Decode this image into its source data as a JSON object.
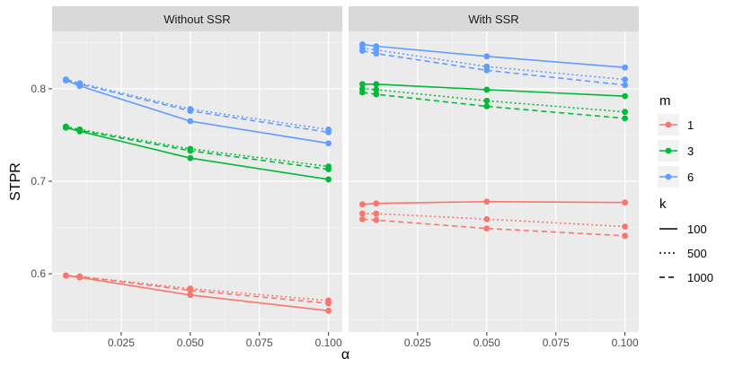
{
  "chart_data": {
    "type": "line",
    "facet_variable": "SSR",
    "panels": [
      {
        "title": "Without SSR",
        "series": [
          {
            "m": "1",
            "k": "100",
            "x": [
              0.005,
              0.01,
              0.05,
              0.1
            ],
            "y": [
              0.598,
              0.596,
              0.577,
              0.56
            ]
          },
          {
            "m": "1",
            "k": "500",
            "x": [
              0.005,
              0.01,
              0.05,
              0.1
            ],
            "y": [
              0.598,
              0.597,
              0.584,
              0.571
            ]
          },
          {
            "m": "1",
            "k": "1000",
            "x": [
              0.005,
              0.01,
              0.05,
              0.1
            ],
            "y": [
              0.598,
              0.597,
              0.582,
              0.568
            ]
          },
          {
            "m": "3",
            "k": "100",
            "x": [
              0.005,
              0.01,
              0.05,
              0.1
            ],
            "y": [
              0.758,
              0.754,
              0.725,
              0.702
            ]
          },
          {
            "m": "3",
            "k": "500",
            "x": [
              0.005,
              0.01,
              0.05,
              0.1
            ],
            "y": [
              0.759,
              0.756,
              0.735,
              0.716
            ]
          },
          {
            "m": "3",
            "k": "1000",
            "x": [
              0.005,
              0.01,
              0.05,
              0.1
            ],
            "y": [
              0.759,
              0.755,
              0.733,
              0.713
            ]
          },
          {
            "m": "6",
            "k": "100",
            "x": [
              0.005,
              0.01,
              0.05,
              0.1
            ],
            "y": [
              0.809,
              0.803,
              0.765,
              0.741
            ]
          },
          {
            "m": "6",
            "k": "500",
            "x": [
              0.005,
              0.01,
              0.05,
              0.1
            ],
            "y": [
              0.81,
              0.806,
              0.778,
              0.756
            ]
          },
          {
            "m": "6",
            "k": "1000",
            "x": [
              0.005,
              0.01,
              0.05,
              0.1
            ],
            "y": [
              0.81,
              0.805,
              0.776,
              0.753
            ]
          }
        ]
      },
      {
        "title": "With SSR",
        "series": [
          {
            "m": "1",
            "k": "100",
            "x": [
              0.005,
              0.01,
              0.05,
              0.1
            ],
            "y": [
              0.675,
              0.676,
              0.678,
              0.677
            ]
          },
          {
            "m": "1",
            "k": "500",
            "x": [
              0.005,
              0.01,
              0.05,
              0.1
            ],
            "y": [
              0.665,
              0.665,
              0.659,
              0.651
            ]
          },
          {
            "m": "1",
            "k": "1000",
            "x": [
              0.005,
              0.01,
              0.05,
              0.1
            ],
            "y": [
              0.659,
              0.658,
              0.649,
              0.641
            ]
          },
          {
            "m": "3",
            "k": "100",
            "x": [
              0.005,
              0.01,
              0.05,
              0.1
            ],
            "y": [
              0.805,
              0.805,
              0.799,
              0.792
            ]
          },
          {
            "m": "3",
            "k": "500",
            "x": [
              0.005,
              0.01,
              0.05,
              0.1
            ],
            "y": [
              0.8,
              0.799,
              0.787,
              0.775
            ]
          },
          {
            "m": "3",
            "k": "1000",
            "x": [
              0.005,
              0.01,
              0.05,
              0.1
            ],
            "y": [
              0.796,
              0.794,
              0.781,
              0.768
            ]
          },
          {
            "m": "6",
            "k": "100",
            "x": [
              0.005,
              0.01,
              0.05,
              0.1
            ],
            "y": [
              0.848,
              0.846,
              0.835,
              0.823
            ]
          },
          {
            "m": "6",
            "k": "500",
            "x": [
              0.005,
              0.01,
              0.05,
              0.1
            ],
            "y": [
              0.844,
              0.842,
              0.824,
              0.81
            ]
          },
          {
            "m": "6",
            "k": "1000",
            "x": [
              0.005,
              0.01,
              0.05,
              0.1
            ],
            "y": [
              0.841,
              0.838,
              0.82,
              0.804
            ]
          }
        ]
      }
    ],
    "xlabel": "α",
    "ylabel": "STPR",
    "xlim": [
      0.0,
      0.105
    ],
    "ylim": [
      0.537,
      0.862
    ],
    "xticks": [
      0.025,
      0.05,
      0.075,
      0.1
    ],
    "xtick_labels": [
      "0.025",
      "0.050",
      "0.075",
      "0.100"
    ],
    "yticks": [
      0.6,
      0.7,
      0.8
    ],
    "ytick_labels": [
      "0.6",
      "0.7",
      "0.8"
    ],
    "grid": true,
    "legends": [
      {
        "title": "m",
        "kind": "color",
        "entries": [
          {
            "label": "1",
            "color": "#F8766D"
          },
          {
            "label": "3",
            "color": "#00BA38"
          },
          {
            "label": "6",
            "color": "#619CFF"
          }
        ]
      },
      {
        "title": "k",
        "kind": "linetype",
        "entries": [
          {
            "label": "100",
            "linetype": "solid"
          },
          {
            "label": "500",
            "linetype": "dotted"
          },
          {
            "label": "1000",
            "linetype": "dashed"
          }
        ]
      }
    ],
    "legend_position": "right"
  }
}
